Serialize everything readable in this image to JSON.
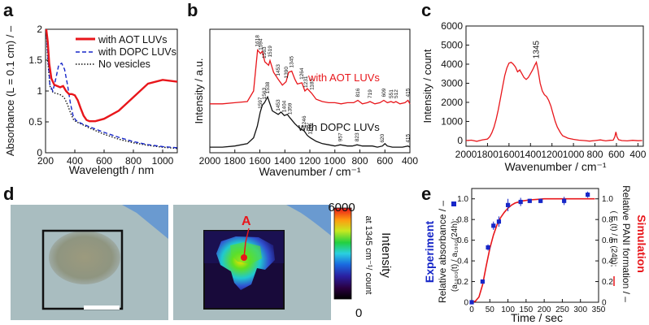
{
  "panel_letters": {
    "a": "a",
    "b": "b",
    "c": "c",
    "d": "d",
    "e": "e"
  },
  "colors": {
    "red": "#e8161b",
    "blue": "#1727c8",
    "black": "#111111",
    "gray": "#888888"
  },
  "chart_data": [
    {
      "panel": "a",
      "type": "line",
      "xlabel": "Wavelength / nm",
      "ylabel": "Absorbance (L = 0.1 cm) / –",
      "xlim": [
        200,
        1100
      ],
      "ylim": [
        0,
        2
      ],
      "xticks": [
        200,
        400,
        600,
        800,
        1000
      ],
      "yticks": [
        0,
        0.5,
        1.0,
        1.5,
        2.0
      ],
      "ytick_labels": [
        "0",
        "0.5",
        "1",
        "1.5",
        "2"
      ],
      "series": [
        {
          "name": "with AOT LUVs",
          "style": "solid",
          "color": "#e8161b",
          "x": [
            205,
            215,
            225,
            240,
            260,
            280,
            300,
            320,
            340,
            360,
            380,
            400,
            420,
            440,
            460,
            480,
            500,
            540,
            600,
            700,
            800,
            900,
            1000,
            1100
          ],
          "y": [
            2.0,
            1.8,
            1.45,
            1.2,
            1.1,
            1.08,
            1.06,
            1.08,
            1.0,
            0.95,
            0.95,
            0.93,
            0.85,
            0.72,
            0.6,
            0.53,
            0.51,
            0.51,
            0.55,
            0.68,
            0.9,
            1.12,
            1.18,
            1.15
          ]
        },
        {
          "name": "with DOPC LUVs",
          "style": "dashed",
          "color": "#1727c8",
          "x": [
            205,
            215,
            230,
            250,
            270,
            290,
            310,
            330,
            350,
            370,
            390,
            410,
            440,
            500,
            600,
            700,
            800,
            900,
            1000,
            1100
          ],
          "y": [
            2.0,
            1.6,
            1.1,
            1.0,
            1.2,
            1.42,
            1.45,
            1.35,
            1.1,
            0.8,
            0.58,
            0.52,
            0.48,
            0.42,
            0.33,
            0.25,
            0.18,
            0.13,
            0.1,
            0.08
          ]
        },
        {
          "name": "No vesicles",
          "style": "dotted",
          "color": "#111111",
          "x": [
            205,
            215,
            230,
            250,
            270,
            290,
            310,
            330,
            350,
            370,
            390,
            410,
            440,
            500,
            600,
            700,
            800,
            900,
            1000,
            1100
          ],
          "y": [
            2.0,
            1.5,
            1.08,
            0.98,
            0.96,
            0.95,
            0.93,
            0.88,
            0.78,
            0.65,
            0.54,
            0.5,
            0.47,
            0.4,
            0.3,
            0.22,
            0.16,
            0.12,
            0.09,
            0.07
          ]
        }
      ],
      "legend": [
        "with AOT LUVs",
        "with DOPC LUVs",
        "No vesicles"
      ],
      "legend_position": "top-right"
    },
    {
      "panel": "b",
      "type": "line",
      "xlabel": "Wavenumber / cm⁻¹",
      "ylabel": "Intensity / a.u.",
      "xlim": [
        2000,
        400
      ],
      "ylim": [
        0,
        1
      ],
      "xticks": [
        2000,
        1800,
        1600,
        1400,
        1200,
        1000,
        800,
        600,
        400
      ],
      "series": [
        {
          "name": "with AOT LUVs",
          "color": "#e8161b",
          "x": [
            2000,
            1900,
            1800,
            1700,
            1650,
            1618,
            1595,
            1580,
            1560,
            1530,
            1519,
            1490,
            1453,
            1420,
            1390,
            1370,
            1345,
            1320,
            1300,
            1264,
            1240,
            1220,
            1185,
            1150,
            1100,
            1050,
            1000,
            950,
            900,
            850,
            816,
            780,
            740,
            719,
            680,
            640,
            609,
            580,
            551,
            530,
            512,
            480,
            440,
            415,
            400
          ],
          "y": [
            0.39,
            0.39,
            0.4,
            0.41,
            0.5,
            0.85,
            0.82,
            0.84,
            0.75,
            0.72,
            0.76,
            0.66,
            0.6,
            0.55,
            0.58,
            0.66,
            0.67,
            0.6,
            0.56,
            0.57,
            0.5,
            0.52,
            0.48,
            0.43,
            0.41,
            0.4,
            0.4,
            0.39,
            0.4,
            0.4,
            0.42,
            0.39,
            0.4,
            0.41,
            0.39,
            0.4,
            0.42,
            0.4,
            0.41,
            0.4,
            0.41,
            0.39,
            0.4,
            0.42,
            0.39
          ]
        },
        {
          "name": "with DOPC LUVs",
          "color": "#111111",
          "x": [
            2000,
            1900,
            1800,
            1700,
            1650,
            1620,
            1597,
            1580,
            1563,
            1538,
            1500,
            1453,
            1430,
            1404,
            1380,
            1359,
            1320,
            1280,
            1246,
            1220,
            1196,
            1150,
            1100,
            1050,
            1000,
            957,
            900,
            860,
            823,
            780,
            740,
            700,
            660,
            620,
            600,
            580,
            540,
            500,
            460,
            415,
            400
          ],
          "y": [
            0.02,
            0.02,
            0.03,
            0.05,
            0.1,
            0.2,
            0.32,
            0.38,
            0.4,
            0.45,
            0.33,
            0.3,
            0.32,
            0.29,
            0.3,
            0.27,
            0.22,
            0.18,
            0.16,
            0.12,
            0.1,
            0.07,
            0.05,
            0.04,
            0.03,
            0.04,
            0.03,
            0.03,
            0.04,
            0.03,
            0.03,
            0.03,
            0.02,
            0.03,
            0.05,
            0.03,
            0.02,
            0.02,
            0.02,
            0.03,
            0.02
          ]
        }
      ],
      "peak_labels_aot": [
        "1618",
        "1594",
        "1563",
        "1519",
        "1453",
        "1390",
        "1345",
        "1264",
        "1231",
        "1185",
        "816",
        "719",
        "609",
        "551",
        "512",
        "415"
      ],
      "peak_labels_aot_x": [
        1618,
        1594,
        1563,
        1519,
        1453,
        1390,
        1345,
        1264,
        1231,
        1185,
        816,
        719,
        609,
        551,
        512,
        415
      ],
      "peak_labels_dopc": [
        "1597",
        "1563",
        "1538",
        "1453",
        "1404",
        "1359",
        "1246",
        "1196",
        "957",
        "823",
        "620",
        "415"
      ],
      "peak_labels_dopc_x": [
        1597,
        1563,
        1538,
        1453,
        1404,
        1359,
        1246,
        1196,
        957,
        823,
        620,
        415
      ],
      "series_labels": [
        "with AOT LUVs",
        "with DOPC LUVs"
      ]
    },
    {
      "panel": "c",
      "type": "line",
      "xlabel": "Wavenumber / cm⁻¹",
      "ylabel": "Intensity / count",
      "xlim": [
        2000,
        350
      ],
      "ylim": [
        -300,
        6000
      ],
      "xticks": [
        2000,
        1800,
        1600,
        1400,
        1200,
        1000,
        800,
        600,
        400
      ],
      "yticks": [
        0,
        1000,
        2000,
        3000,
        4000,
        5000,
        6000
      ],
      "annotation": "1345",
      "series": [
        {
          "name": "spectrum",
          "color": "#e8161b",
          "x": [
            2000,
            1950,
            1900,
            1850,
            1800,
            1780,
            1760,
            1740,
            1720,
            1700,
            1680,
            1660,
            1640,
            1620,
            1600,
            1580,
            1560,
            1540,
            1520,
            1500,
            1480,
            1460,
            1440,
            1420,
            1400,
            1380,
            1360,
            1345,
            1330,
            1310,
            1290,
            1270,
            1250,
            1230,
            1210,
            1190,
            1170,
            1150,
            1120,
            1100,
            1050,
            1000,
            950,
            900,
            850,
            800,
            750,
            700,
            660,
            630,
            615,
            605,
            595,
            580,
            550,
            500,
            450,
            400,
            360
          ],
          "y": [
            0,
            20,
            -40,
            30,
            80,
            200,
            400,
            700,
            1100,
            1600,
            2200,
            2800,
            3400,
            3800,
            4050,
            4100,
            4000,
            3850,
            3600,
            3700,
            3500,
            3300,
            3200,
            3300,
            3500,
            3700,
            3950,
            4100,
            3700,
            3000,
            2600,
            2400,
            2300,
            2100,
            1800,
            1400,
            1000,
            700,
            400,
            250,
            120,
            60,
            20,
            0,
            -30,
            0,
            30,
            -20,
            10,
            20,
            200,
            450,
            200,
            40,
            0,
            -20,
            10,
            -10,
            0
          ]
        }
      ]
    },
    {
      "panel": "e",
      "type": "scatter",
      "xlabel": "Time / sec",
      "xlim": [
        0,
        350
      ],
      "ylim": [
        0,
        1.1
      ],
      "xticks": [
        0,
        50,
        100,
        150,
        200,
        250,
        300,
        350
      ],
      "yticks": [
        0,
        0.2,
        0.4,
        0.6,
        0.8,
        1.0
      ],
      "ytick_labels": [
        "0",
        "0.2",
        "0.4",
        "0.6",
        "0.8",
        "1.0"
      ],
      "left_axis_title": "Experiment",
      "left_axis_label": "Relative absorbance / –",
      "left_axis_formula": "(a₁₀₀₀(t) / a₁₀₀₀(24h);",
      "right_axis_title": "Simulation",
      "right_axis_label": "Relative PANI formation / –",
      "right_axis_formula": "( E (t) / E (24h);",
      "experiment": {
        "color": "#1727c8",
        "x": [
          0,
          30,
          45,
          60,
          75,
          100,
          135,
          160,
          190,
          255,
          320
        ],
        "y": [
          0.0,
          0.2,
          0.53,
          0.74,
          0.78,
          0.94,
          0.97,
          0.98,
          0.98,
          0.98,
          1.04
        ],
        "yerr": [
          0.0,
          0.0,
          0.03,
          0.04,
          0.05,
          0.06,
          0.04,
          0.02,
          0.02,
          0.04,
          0.03
        ]
      },
      "simulation": {
        "color": "#e8161b",
        "x": [
          0,
          10,
          20,
          30,
          40,
          50,
          60,
          70,
          80,
          90,
          100,
          110,
          120,
          140,
          160,
          180,
          200,
          250,
          300,
          340
        ],
        "y": [
          0.0,
          0.01,
          0.05,
          0.17,
          0.35,
          0.52,
          0.65,
          0.75,
          0.82,
          0.87,
          0.91,
          0.94,
          0.96,
          0.98,
          0.99,
          0.995,
          1.0,
          1.0,
          1.0,
          1.0
        ]
      }
    }
  ],
  "panel_d": {
    "colorbar_max": "6000",
    "colorbar_min": "0",
    "colorbar_title": "Intensity",
    "colorbar_subtitle": "at 1345 cm⁻¹/ count",
    "marker_label": "A"
  }
}
